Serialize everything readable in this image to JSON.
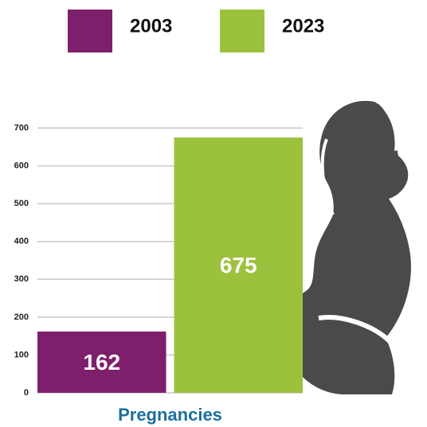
{
  "chart_data": {
    "type": "bar",
    "categories": [
      "Pregnancies"
    ],
    "series": [
      {
        "name": "2003",
        "color": "#7e1f6b",
        "values": [
          162
        ]
      },
      {
        "name": "2023",
        "color": "#9cc23d",
        "values": [
          675
        ]
      }
    ],
    "ylim": [
      0,
      700
    ],
    "yticks": [
      0,
      100,
      200,
      300,
      400,
      500,
      600,
      700
    ],
    "grid": true
  }
}
